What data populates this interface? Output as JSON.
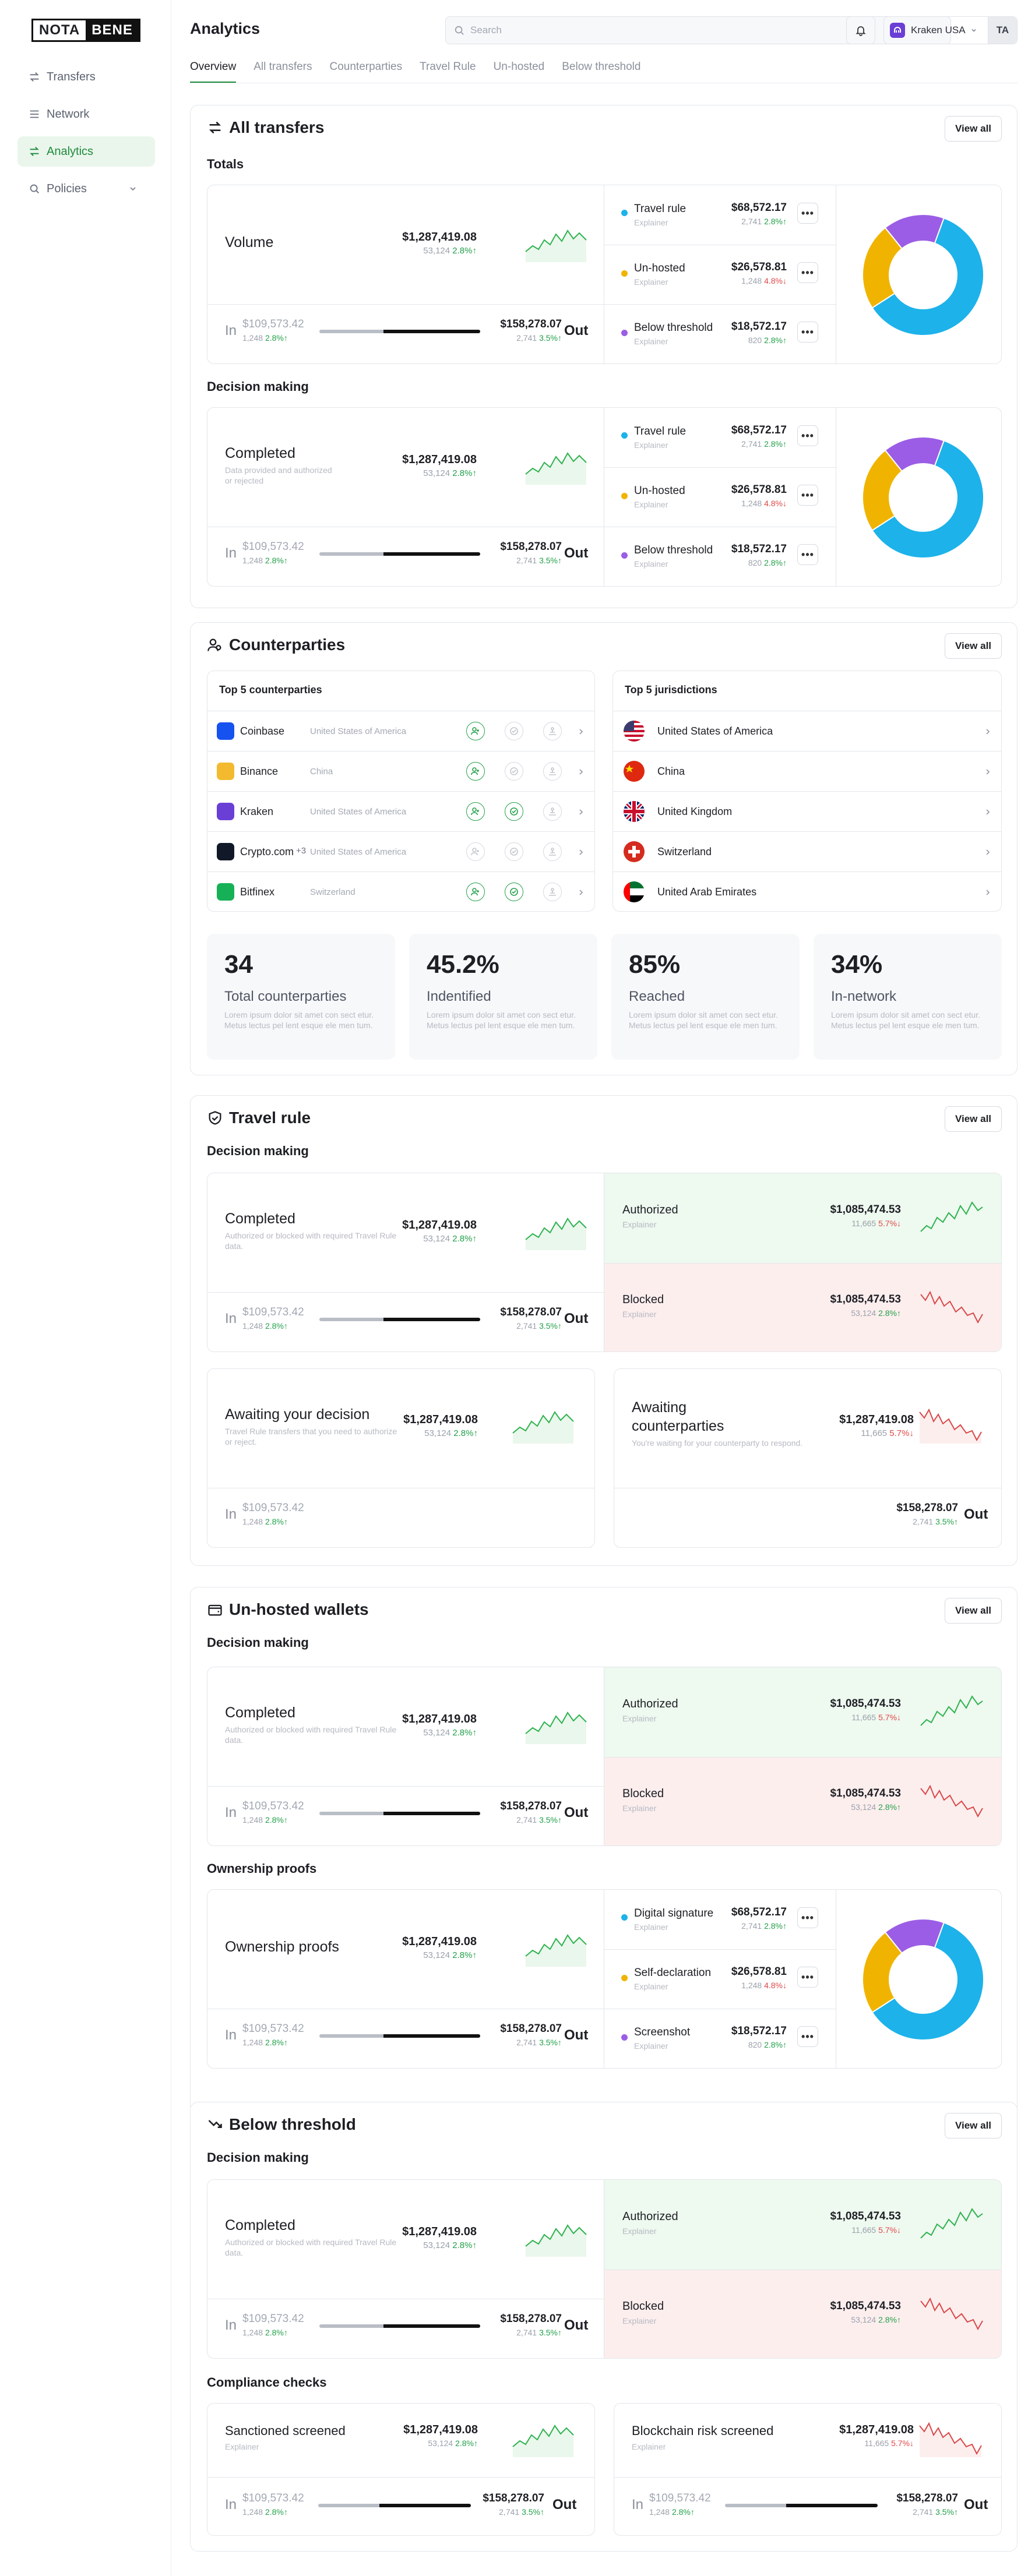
{
  "brand": {
    "logo_left": "NOTA",
    "logo_right": "BENE"
  },
  "sidebar": {
    "items": [
      {
        "label": "Transfers",
        "icon": "transfers-icon"
      },
      {
        "label": "Network",
        "icon": "network-icon"
      },
      {
        "label": "Analytics",
        "icon": "analytics-icon"
      },
      {
        "label": "Policies",
        "icon": "policies-icon"
      }
    ]
  },
  "header": {
    "title": "Analytics",
    "search_placeholder": "Search",
    "org_name": "Kraken USA",
    "avatar_initials": "TA"
  },
  "tabs": [
    "Overview",
    "All transfers",
    "Counterparties",
    "Travel Rule",
    "Un-hosted",
    "Below threshold"
  ],
  "common": {
    "view_all": "View all",
    "in_label": "In",
    "out_label": "Out",
    "in_value": "$109,573.42",
    "in_sub": "1,248",
    "in_pct": "2.8%",
    "out_value": "$158,278.07",
    "out_sub": "2,741",
    "out_pct": "3.5%",
    "big_value": "$1,287,419.08",
    "big_sub": "53,124",
    "big_pct": "2.8%",
    "explainer": "Explainer",
    "more": "•••"
  },
  "all_transfers": {
    "title": "All transfers",
    "totals": "Totals",
    "decision": "Decision making",
    "volume": "Volume",
    "completed": "Completed",
    "completed_desc": "Data provided and authorized or rejected",
    "rows": [
      {
        "label": "Travel rule",
        "value": "$68,572.17",
        "sub": "2,741",
        "pct": "2.8%",
        "dir": "up",
        "color": "#1db2ea"
      },
      {
        "label": "Un-hosted",
        "value": "$26,578.81",
        "sub": "1,248",
        "pct": "4.8%",
        "dir": "down",
        "color": "#f0b400"
      },
      {
        "label": "Below threshold",
        "value": "$18,572.17",
        "sub": "820",
        "pct": "2.8%",
        "dir": "up",
        "color": "#9b5de5"
      }
    ],
    "donut": [
      {
        "name": "Travel rule",
        "value": 68572.17,
        "color": "#1db2ea"
      },
      {
        "name": "Un-hosted",
        "value": 26578.81,
        "color": "#f0b400"
      },
      {
        "name": "Below threshold",
        "value": 18572.17,
        "color": "#9b5de5"
      }
    ]
  },
  "counterparties": {
    "title": "Counterparties",
    "top5_cp": "Top 5 counterparties",
    "top5_j": "Top 5 jurisdictions",
    "list": [
      {
        "name": "Coinbase",
        "loc": "United States of America",
        "color": "#1652f0",
        "extra": ""
      },
      {
        "name": "Binance",
        "loc": "China",
        "color": "#f3ba2f",
        "extra": ""
      },
      {
        "name": "Kraken",
        "loc": "United States of America",
        "color": "#6a3fd6",
        "extra": ""
      },
      {
        "name": "Crypto.com",
        "loc": "United States of America",
        "color": "#111827",
        "extra": "+3"
      },
      {
        "name": "Bitfinex",
        "loc": "Switzerland",
        "color": "#16b157",
        "extra": ""
      }
    ],
    "jurisdictions": [
      "United States of America",
      "China",
      "United Kingdom",
      "Switzerland",
      "United Arab Emirates"
    ],
    "stats": [
      {
        "value": "34",
        "label": "Total counterparties"
      },
      {
        "value": "45.2%",
        "label": "Indentified"
      },
      {
        "value": "85%",
        "label": "Reached"
      },
      {
        "value": "34%",
        "label": "In-network"
      }
    ],
    "stat_desc": "Lorem ipsum dolor sit amet con sect etur. Metus lectus pel lent esque ele men tum."
  },
  "travel_rule": {
    "title": "Travel rule",
    "decision": "Decision making",
    "completed": "Completed",
    "completed_desc": "Authorized or blocked with required Travel Rule data.",
    "authorized": "Authorized",
    "blocked": "Blocked",
    "ab_value": "$1,085,474.53",
    "auth_sub": "11,665",
    "auth_pct": "5.7%",
    "block_sub": "53,124",
    "block_pct": "2.8%",
    "awaiting_decision": "Awaiting your decision",
    "awaiting_decision_desc": "Travel Rule transfers that you need to authorize or reject.",
    "awaiting_cp": "Awaiting counterparties",
    "awaiting_cp_desc": "You're waiting for your counterparty to respond.",
    "awcp_value": "$1,287,419.08",
    "awcp_sub": "11,665",
    "awcp_pct": "5.7%"
  },
  "unhosted": {
    "title": "Un-hosted wallets",
    "decision": "Decision making",
    "completed": "Completed",
    "completed_desc": "Authorized or blocked with required Travel Rule data.",
    "ownership": "Ownership proofs",
    "rows": [
      {
        "label": "Digital signature",
        "value": "$68,572.17",
        "sub": "2,741",
        "pct": "2.8%",
        "dir": "up",
        "color": "#1db2ea"
      },
      {
        "label": "Self-declaration",
        "value": "$26,578.81",
        "sub": "1,248",
        "pct": "4.8%",
        "dir": "down",
        "color": "#f0b400"
      },
      {
        "label": "Screenshot",
        "value": "$18,572.17",
        "sub": "820",
        "pct": "2.8%",
        "dir": "up",
        "color": "#9b5de5"
      }
    ]
  },
  "below": {
    "title": "Below threshold",
    "decision": "Decision making",
    "completed": "Completed",
    "completed_desc": "Authorized or blocked with required Travel Rule data.",
    "compliance": "Compliance checks",
    "sanctioned": "Sanctioned screened",
    "blockchain": "Blockchain risk screened",
    "bc_sub": "11,665",
    "bc_pct": "5.7%"
  }
}
